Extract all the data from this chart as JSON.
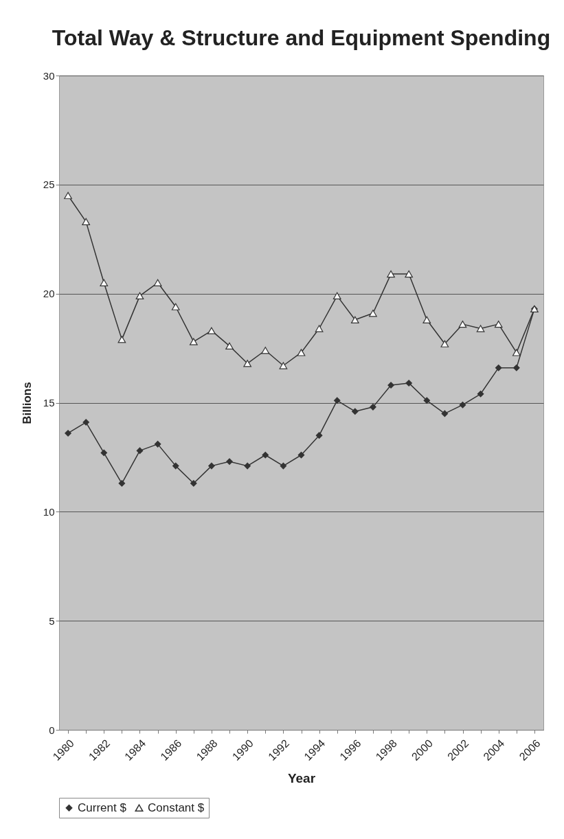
{
  "chart_data": {
    "type": "line",
    "title": "Total Way & Structure and Equipment Spending",
    "xlabel": "Year",
    "ylabel": "Billions",
    "categories": [
      "1980",
      null,
      "1982",
      null,
      "1984",
      null,
      "1986",
      null,
      "1988",
      null,
      "1990",
      null,
      "1992",
      null,
      "1994",
      null,
      "1996",
      null,
      "1998",
      null,
      "2000",
      null,
      "2002",
      null,
      "2004",
      null,
      "2006"
    ],
    "series": [
      {
        "name": "Current $",
        "color": "#333333",
        "marker": "diamond",
        "values": [
          13.6,
          14.1,
          12.7,
          11.3,
          12.8,
          13.1,
          12.1,
          11.3,
          12.1,
          12.3,
          12.1,
          12.6,
          12.1,
          12.6,
          13.5,
          15.1,
          14.6,
          14.8,
          15.8,
          15.9,
          15.1,
          14.5,
          14.9,
          15.4,
          16.6,
          16.6,
          19.3
        ]
      },
      {
        "name": "Constant $",
        "color": "#333333",
        "marker": "triangle",
        "values": [
          24.5,
          23.3,
          20.5,
          17.9,
          19.9,
          20.5,
          19.4,
          17.8,
          18.3,
          17.6,
          16.8,
          17.4,
          16.7,
          17.3,
          18.4,
          19.9,
          18.8,
          19.1,
          20.9,
          20.9,
          18.8,
          17.7,
          18.6,
          18.4,
          18.6,
          17.3,
          19.3
        ]
      }
    ],
    "ylim": [
      0,
      30
    ],
    "yticks": [
      0,
      5,
      10,
      15,
      20,
      25,
      30
    ],
    "grid": "y",
    "legend": "bottom"
  }
}
